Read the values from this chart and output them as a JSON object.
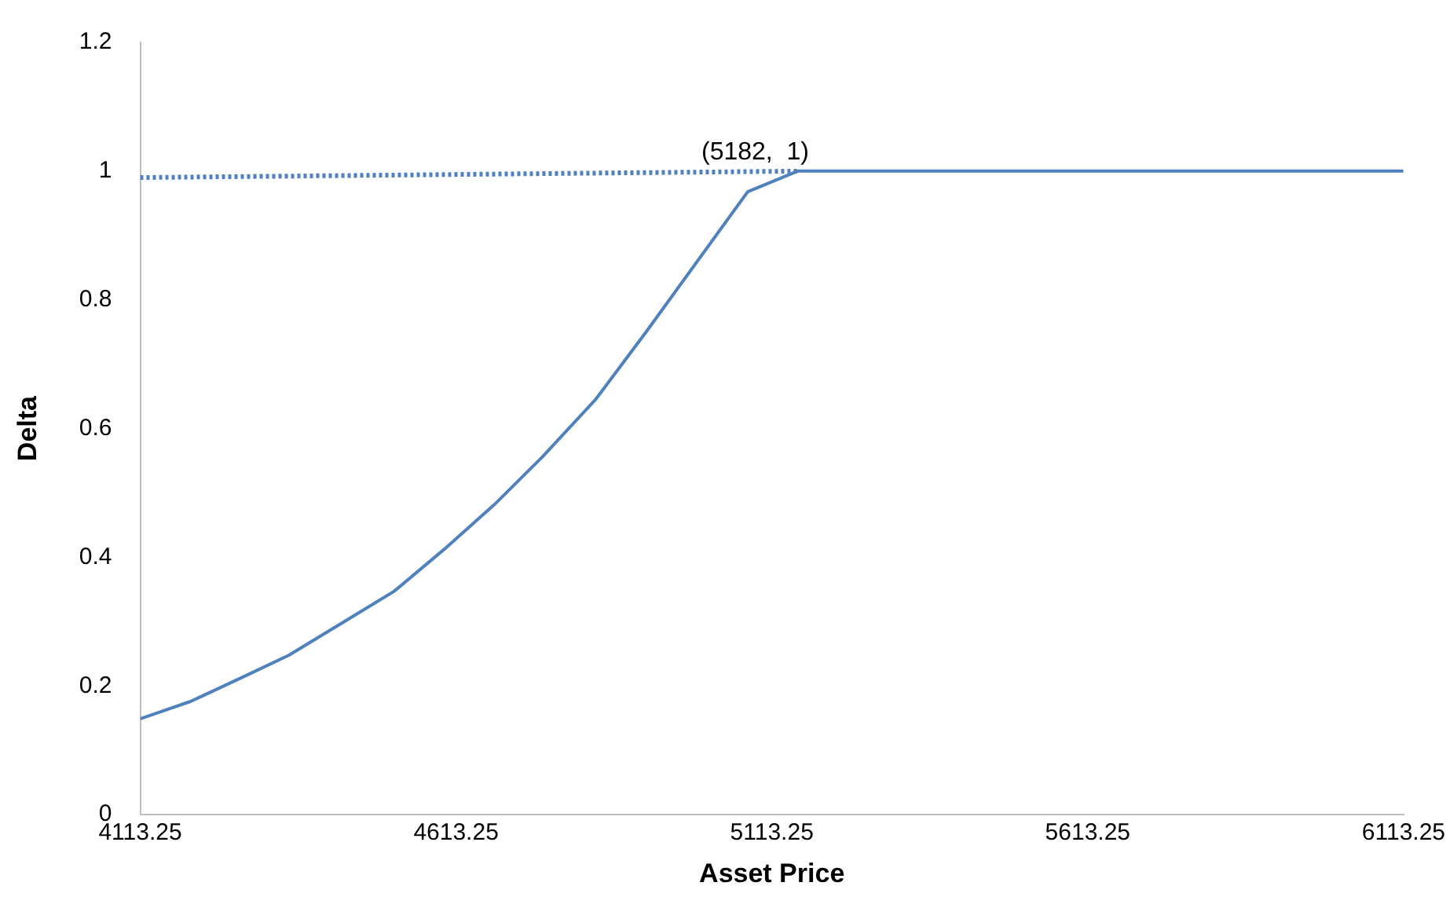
{
  "chart_data": {
    "type": "line",
    "xlabel": "Asset Price",
    "ylabel": "Delta",
    "xlim": [
      4113.25,
      6113.25
    ],
    "xticks": [
      4113.25,
      4613.25,
      5113.25,
      5613.25,
      6113.25
    ],
    "ylim": [
      0,
      1.2
    ],
    "yticks": [
      0,
      0.2,
      0.4,
      0.6,
      0.8,
      1,
      1.2
    ],
    "grid": false,
    "legend": false,
    "marker": "none",
    "series": [
      {
        "color": "#4f81bd",
        "line_style": "solid",
        "x": [
          4113.25,
          4193,
          4274,
          4349,
          4433,
          4515,
          4594,
          4673,
          4750,
          4834,
          4914,
          5075,
          5154,
          6113
        ],
        "values": [
          0.149,
          0.176,
          0.213,
          0.248,
          0.298,
          0.347,
          0.412,
          0.481,
          0.556,
          0.645,
          0.75,
          0.968,
          1.0,
          1.0
        ]
      },
      {
        "color": "#4f81bd",
        "line_style": "dotted",
        "x": [
          4113.25,
          5154
        ],
        "values": [
          0.99,
          1.0
        ]
      }
    ],
    "annotations": [
      {
        "text": "(5182,  1)",
        "x": 5182,
        "y": 1
      }
    ]
  }
}
